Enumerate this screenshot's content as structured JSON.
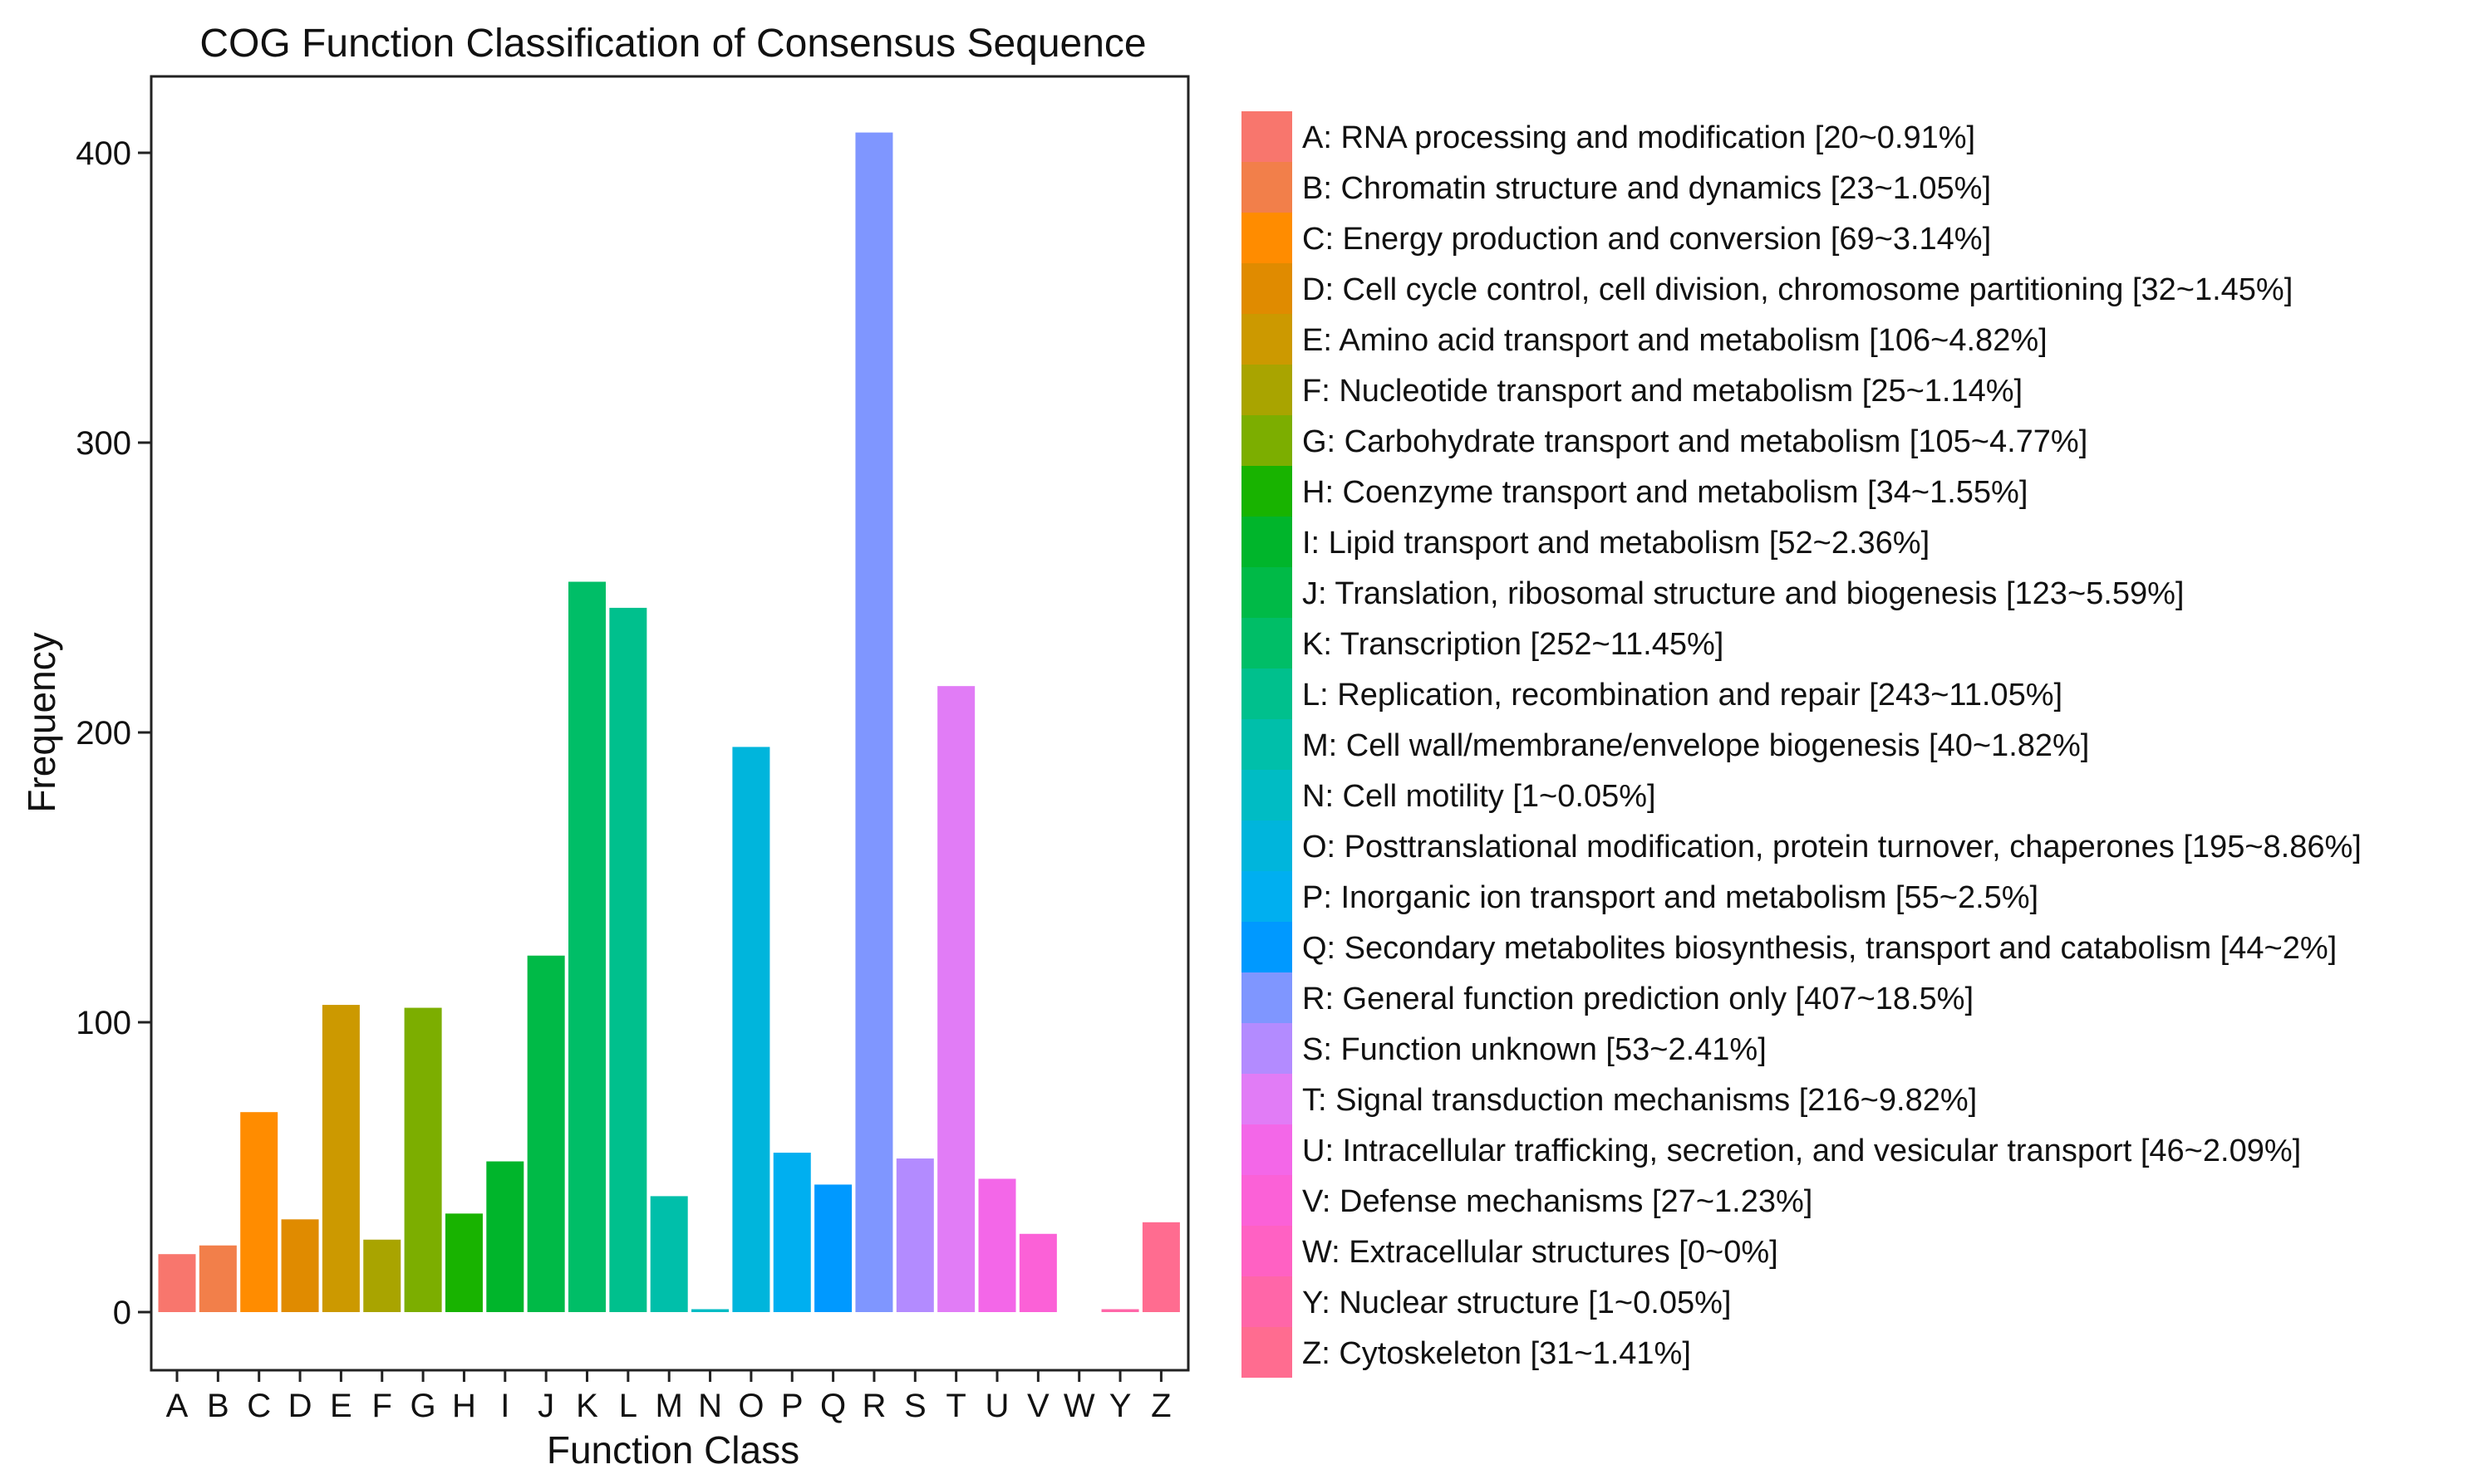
{
  "chart_data": {
    "type": "bar",
    "title": "COG Function Classification of Consensus Sequence",
    "xlabel": "Function Class",
    "ylabel": "Frequency",
    "ylim": [
      0,
      430
    ],
    "yticks": [
      0,
      100,
      200,
      300,
      400
    ],
    "grid": false,
    "legend_position": "right",
    "categories": [
      "A",
      "B",
      "C",
      "D",
      "E",
      "F",
      "G",
      "H",
      "I",
      "J",
      "K",
      "L",
      "M",
      "N",
      "O",
      "P",
      "Q",
      "R",
      "S",
      "T",
      "U",
      "V",
      "W",
      "Y",
      "Z"
    ],
    "values": [
      20,
      23,
      69,
      32,
      106,
      25,
      105,
      34,
      52,
      123,
      252,
      243,
      40,
      1,
      195,
      55,
      44,
      407,
      53,
      216,
      46,
      27,
      0,
      1,
      31
    ],
    "colors": [
      "#F8766D",
      "#F27F4A",
      "#FF8C00",
      "#E08B00",
      "#CC9900",
      "#A9A400",
      "#7CAE00",
      "#18B300",
      "#00B52B",
      "#00BA47",
      "#00BE67",
      "#00C08D",
      "#00BFAA",
      "#00BCC4",
      "#00B5DC",
      "#00AFF0",
      "#0099FF",
      "#7F96FF",
      "#B38BFF",
      "#E17CF6",
      "#F367E8",
      "#FB61D7",
      "#FF61C3",
      "#FF66A8",
      "#FF6C90"
    ],
    "legend": [
      "A: RNA processing and modification [20~0.91%]",
      "B: Chromatin structure and dynamics [23~1.05%]",
      "C: Energy production and conversion [69~3.14%]",
      "D: Cell cycle control, cell division, chromosome partitioning [32~1.45%]",
      "E: Amino acid transport and metabolism [106~4.82%]",
      "F: Nucleotide transport and metabolism [25~1.14%]",
      "G: Carbohydrate transport and metabolism [105~4.77%]",
      "H: Coenzyme transport and metabolism [34~1.55%]",
      "I: Lipid transport and metabolism [52~2.36%]",
      "J: Translation, ribosomal structure and biogenesis [123~5.59%]",
      "K: Transcription [252~11.45%]",
      "L: Replication, recombination and repair [243~11.05%]",
      "M: Cell wall/membrane/envelope biogenesis [40~1.82%]",
      "N: Cell motility [1~0.05%]",
      "O: Posttranslational modification, protein turnover, chaperones [195~8.86%]",
      "P: Inorganic ion transport and metabolism [55~2.5%]",
      "Q: Secondary metabolites biosynthesis, transport and catabolism [44~2%]",
      "R: General function prediction only [407~18.5%]",
      "S: Function unknown [53~2.41%]",
      "T: Signal transduction mechanisms [216~9.82%]",
      "U: Intracellular trafficking, secretion, and vesicular transport [46~2.09%]",
      "V: Defense mechanisms [27~1.23%]",
      "W: Extracellular structures [0~0%]",
      "Y: Nuclear structure [1~0.05%]",
      "Z: Cytoskeleton [31~1.41%]"
    ]
  }
}
